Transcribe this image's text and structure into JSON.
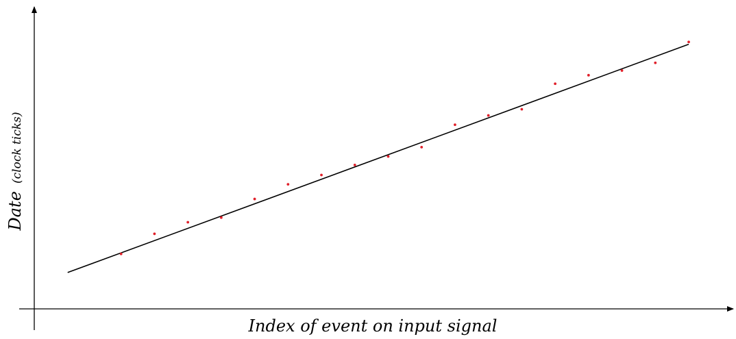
{
  "chart_data": {
    "type": "scatter",
    "xlabel": "Index of event on input signal",
    "ylabel_main": "Date",
    "ylabel_unit": "(clock ticks)",
    "x_ticks": false,
    "y_ticks": false,
    "grid": false,
    "xlim": [
      0,
      20
    ],
    "ylim": [
      0,
      370
    ],
    "points": {
      "x": [
        2.6,
        3.6,
        4.6,
        5.6,
        6.6,
        7.6,
        8.6,
        9.6,
        10.6,
        11.6,
        12.6,
        13.6,
        14.6,
        15.6,
        16.6,
        17.6,
        18.6,
        19.6
      ],
      "y": [
        71,
        97,
        112,
        118,
        142,
        161,
        173,
        186,
        197,
        209,
        238,
        250,
        258,
        291,
        302,
        308,
        318,
        345
      ]
    },
    "fit_line": {
      "x": [
        1.0,
        19.6
      ],
      "y": [
        47,
        342
      ]
    },
    "colors": {
      "points": "#e0202a",
      "line": "#000000",
      "axes": "#000000"
    }
  }
}
